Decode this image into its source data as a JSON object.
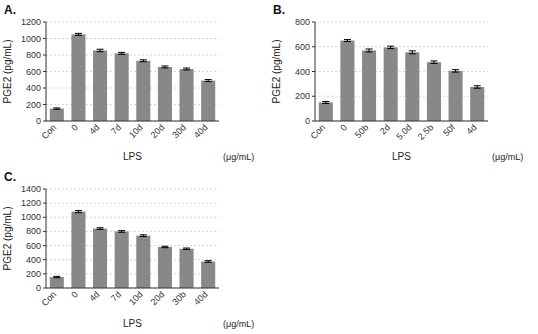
{
  "chart_data": [
    {
      "type": "bar",
      "title": "A.",
      "xlabel": "LPS",
      "annotations": [
        "(μg/mL)"
      ],
      "ylabel": "PGE2 (pg/mL)",
      "categories": [
        "Con",
        "0",
        "4d",
        "7d",
        "10d",
        "20d",
        "30d",
        "40d"
      ],
      "values": [
        150,
        1050,
        855,
        820,
        730,
        655,
        630,
        490
      ],
      "errors": [
        8,
        12,
        15,
        12,
        12,
        12,
        12,
        12
      ],
      "color": "#888888",
      "ylim": [
        0,
        1200
      ],
      "yticks": [
        0,
        200,
        400,
        600,
        800,
        1000,
        1200
      ],
      "grid": true
    },
    {
      "type": "bar",
      "title": "B.",
      "xlabel": "LPS",
      "annotations": [
        "(μg/mL)"
      ],
      "ylabel": "PGE2 (pg/mL)",
      "categories": [
        "Con",
        "0",
        "50b",
        "2d",
        "5.0d",
        "2.5b",
        "50f",
        "4d"
      ],
      "values": [
        150,
        650,
        570,
        595,
        555,
        475,
        405,
        275
      ],
      "errors": [
        8,
        8,
        12,
        10,
        12,
        10,
        10,
        10
      ],
      "color": "#888888",
      "ylim": [
        0,
        800
      ],
      "yticks": [
        0,
        200,
        400,
        600,
        800
      ],
      "grid": true
    },
    {
      "type": "bar",
      "title": "C.",
      "xlabel": "LPS",
      "annotations": [
        "(μg/mL)"
      ],
      "ylabel": "PGE2 (pg/mL)",
      "categories": [
        "Con",
        "0",
        "4d",
        "7d",
        "10d",
        "20d",
        "30b",
        "40d"
      ],
      "values": [
        155,
        1080,
        840,
        800,
        740,
        580,
        555,
        375
      ],
      "errors": [
        10,
        15,
        12,
        12,
        12,
        10,
        10,
        12
      ],
      "color": "#888888",
      "ylim": [
        0,
        1400
      ],
      "yticks": [
        0,
        200,
        400,
        600,
        800,
        1000,
        1200,
        1400
      ],
      "grid": true
    }
  ]
}
